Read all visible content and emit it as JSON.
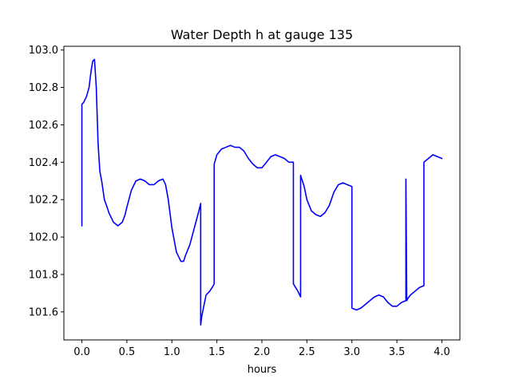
{
  "chart_data": {
    "type": "line",
    "title": "Water Depth h at gauge 135",
    "xlabel": "hours",
    "ylabel": "",
    "xlim": [
      -0.2,
      4.2
    ],
    "ylim": [
      101.45,
      103.02
    ],
    "grid": false,
    "legend": "none",
    "x_ticks": [
      0.0,
      0.5,
      1.0,
      1.5,
      2.0,
      2.5,
      3.0,
      3.5,
      4.0
    ],
    "x_tick_labels": [
      "0.0",
      "0.5",
      "1.0",
      "1.5",
      "2.0",
      "2.5",
      "3.0",
      "3.5",
      "4.0"
    ],
    "y_ticks": [
      101.6,
      101.8,
      102.0,
      102.2,
      102.4,
      102.6,
      102.8,
      103.0
    ],
    "y_tick_labels": [
      "101.6",
      "101.8",
      "102.0",
      "102.2",
      "102.4",
      "102.6",
      "102.8",
      "103.0"
    ],
    "series": [
      {
        "color": "#0000ff",
        "x": [
          0.0,
          0.0,
          0.02,
          0.05,
          0.08,
          0.1,
          0.12,
          0.14,
          0.16,
          0.18,
          0.2,
          0.22,
          0.25,
          0.28,
          0.3,
          0.35,
          0.4,
          0.45,
          0.48,
          0.5,
          0.55,
          0.6,
          0.65,
          0.7,
          0.75,
          0.8,
          0.85,
          0.9,
          0.93,
          0.96,
          1.0,
          1.05,
          1.1,
          1.13,
          1.15,
          1.2,
          1.25,
          1.3,
          1.32,
          1.32,
          1.33,
          1.35,
          1.38,
          1.42,
          1.46,
          1.47,
          1.47,
          1.5,
          1.55,
          1.6,
          1.65,
          1.7,
          1.75,
          1.8,
          1.85,
          1.9,
          1.95,
          2.0,
          2.05,
          2.1,
          2.15,
          2.2,
          2.25,
          2.3,
          2.35,
          2.35,
          2.4,
          2.43,
          2.43,
          2.47,
          2.5,
          2.55,
          2.6,
          2.65,
          2.7,
          2.75,
          2.8,
          2.85,
          2.9,
          2.95,
          3.0,
          3.0,
          3.05,
          3.1,
          3.15,
          3.2,
          3.25,
          3.3,
          3.35,
          3.4,
          3.45,
          3.5,
          3.55,
          3.6,
          3.6,
          3.61,
          3.62,
          3.65,
          3.7,
          3.75,
          3.8,
          3.8,
          3.85,
          3.9,
          3.95,
          4.0
        ],
        "y": [
          102.06,
          102.71,
          102.72,
          102.75,
          102.8,
          102.88,
          102.94,
          102.95,
          102.8,
          102.5,
          102.35,
          102.3,
          102.2,
          102.16,
          102.13,
          102.08,
          102.06,
          102.08,
          102.12,
          102.16,
          102.25,
          102.3,
          102.31,
          102.3,
          102.28,
          102.28,
          102.3,
          102.31,
          102.28,
          102.2,
          102.05,
          101.92,
          101.87,
          101.87,
          101.9,
          101.96,
          102.05,
          102.14,
          102.18,
          101.53,
          101.57,
          101.62,
          101.69,
          101.71,
          101.74,
          101.75,
          102.39,
          102.44,
          102.47,
          102.48,
          102.49,
          102.48,
          102.48,
          102.46,
          102.42,
          102.39,
          102.37,
          102.37,
          102.4,
          102.43,
          102.44,
          102.43,
          102.42,
          102.4,
          102.4,
          101.75,
          101.71,
          101.68,
          102.33,
          102.27,
          102.2,
          102.14,
          102.12,
          102.11,
          102.13,
          102.17,
          102.24,
          102.28,
          102.29,
          102.28,
          102.27,
          101.62,
          101.61,
          101.62,
          101.64,
          101.66,
          101.68,
          101.69,
          101.68,
          101.65,
          101.63,
          101.63,
          101.65,
          101.66,
          102.31,
          101.66,
          101.67,
          101.69,
          101.71,
          101.73,
          101.74,
          102.4,
          102.42,
          102.44,
          102.43,
          102.42
        ]
      }
    ]
  }
}
